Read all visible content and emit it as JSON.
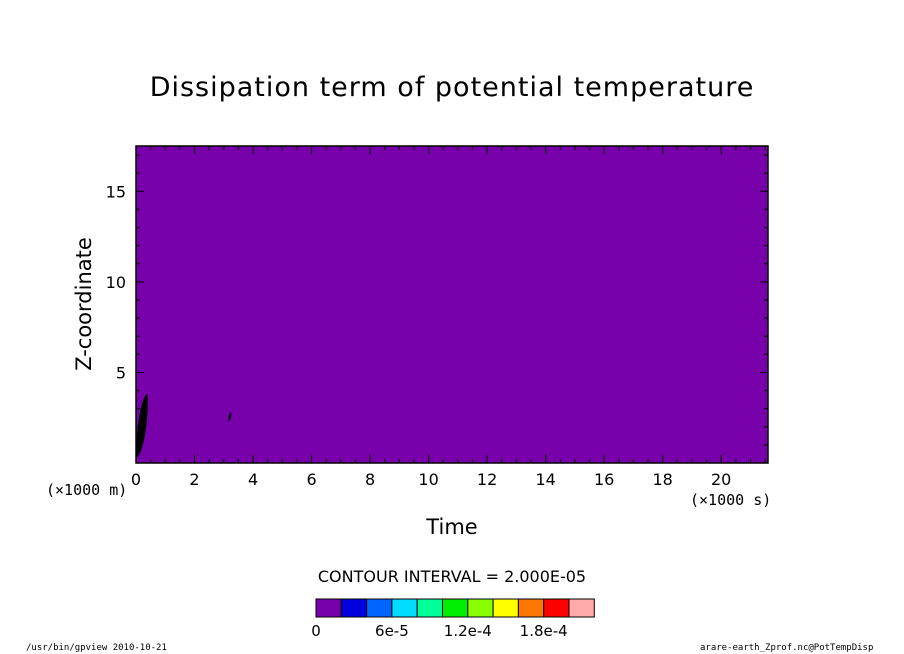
{
  "chart_data": {
    "type": "heatmap",
    "title": "Dissipation term of potential temperature",
    "xlabel": "Time",
    "ylabel": "Z-coordinate",
    "x_unit": "(×1000 s)",
    "y_unit": "(×1000 m)",
    "xlim": [
      0,
      21.6
    ],
    "ylim": [
      0,
      17.5
    ],
    "x_ticks": [
      0,
      2,
      4,
      6,
      8,
      10,
      12,
      14,
      16,
      18,
      20
    ],
    "y_ticks": [
      5,
      10,
      15
    ],
    "background_level_color": "#7700aa",
    "contour_interval": "CONTOUR INTERVAL = 2.000E-05",
    "colorbar": {
      "colors": [
        "#7700aa",
        "#0000dd",
        "#0066ff",
        "#00ddff",
        "#00ff99",
        "#00ee00",
        "#88ff00",
        "#ffff00",
        "#ff7700",
        "#ff0000",
        "#ffaaaa"
      ],
      "labels": [
        {
          "text": "0",
          "at": 0
        },
        {
          "text": "6e-5",
          "at": 3
        },
        {
          "text": "1.2e-4",
          "at": 6
        },
        {
          "text": "1.8e-4",
          "at": 9
        }
      ]
    },
    "features": [
      {
        "x_start": 0.0,
        "x_end": 0.4,
        "y_min": 0.3,
        "y_max": 3.8,
        "color": "#000000"
      },
      {
        "x_start": 3.15,
        "x_end": 3.25,
        "y_min": 2.3,
        "y_max": 2.8,
        "color": "#000000"
      }
    ]
  },
  "footer": {
    "left": "/usr/bin/gpview   2010-10-21",
    "right": "arare-earth_Zprof.nc@PotTempDisp"
  }
}
